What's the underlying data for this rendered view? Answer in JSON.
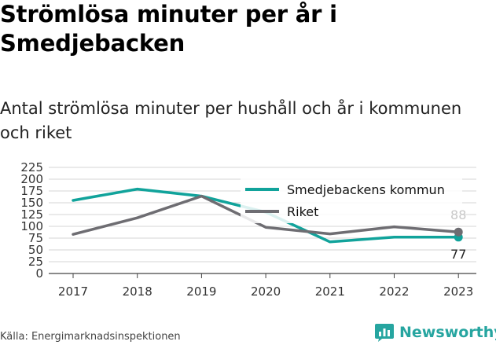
{
  "title": "Strömlösa minuter per år i Smedjebacken",
  "subtitle": "Antal strömlösa minuter per hushåll och år i kommunen och riket",
  "source": "Källa: Energimarknadsinspektionen",
  "brand": "Newsworthy",
  "colors": {
    "smedjebacken": "#11a39b",
    "riket": "#6e6d72",
    "brand": "#26a5a0",
    "grid": "#d4d4d4"
  },
  "chart_data": {
    "type": "line",
    "x": [
      "2017",
      "2018",
      "2019",
      "2020",
      "2021",
      "2022",
      "2023"
    ],
    "ylim": [
      0,
      225
    ],
    "yticks": [
      "0",
      "25",
      "50",
      "75",
      "100",
      "125",
      "150",
      "175",
      "200",
      "225"
    ],
    "grid": true,
    "legend_position": "top-right",
    "series": [
      {
        "name": "Smedjebackens kommun",
        "values": [
          155,
          179,
          164,
          130,
          67,
          77,
          77
        ],
        "end_label": "77"
      },
      {
        "name": "Riket",
        "values": [
          83,
          118,
          164,
          98,
          84,
          99,
          88
        ],
        "end_label": "88"
      }
    ]
  }
}
